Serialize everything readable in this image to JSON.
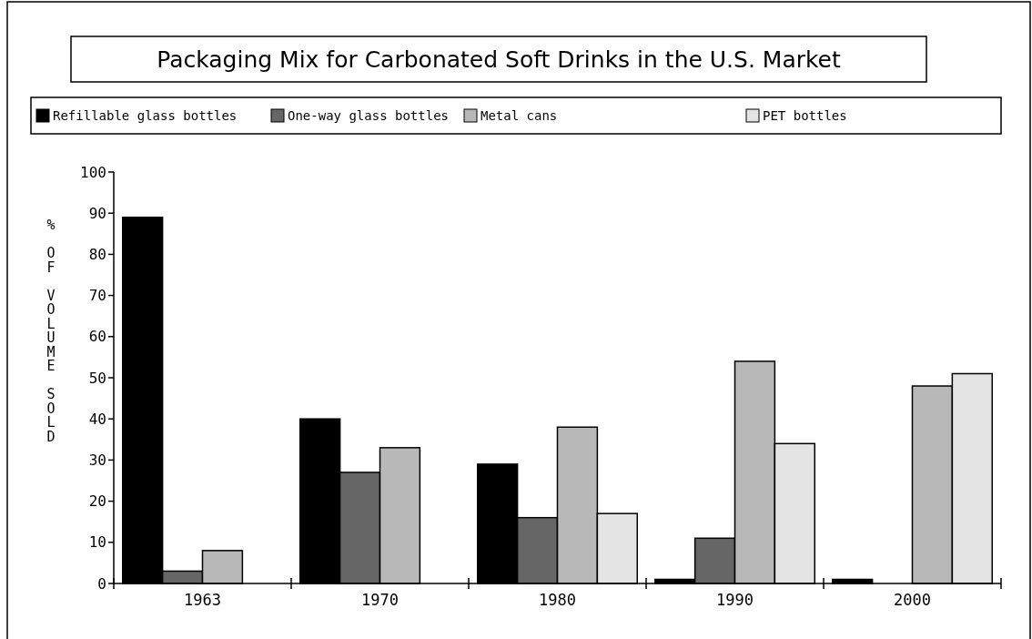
{
  "chart_data": {
    "type": "bar",
    "title": "Packaging Mix for Carbonated Soft Drinks in the U.S. Market",
    "ylabel": "% OF VOLUME SOLD",
    "categories": [
      "1963",
      "1970",
      "1980",
      "1990",
      "2000"
    ],
    "series": [
      {
        "name": "Refillable glass bottles",
        "color": "#000000",
        "values": [
          89,
          40,
          29,
          1,
          1
        ]
      },
      {
        "name": "One-way glass bottles",
        "color": "#666666",
        "values": [
          3,
          27,
          16,
          11,
          null
        ]
      },
      {
        "name": "Metal cans",
        "color": "#b8b8b8",
        "values": [
          8,
          33,
          38,
          54,
          48
        ]
      },
      {
        "name": "PET bottles",
        "color": "#e4e4e4",
        "values": [
          null,
          null,
          17,
          34,
          51
        ]
      }
    ],
    "ylim": [
      0,
      100
    ],
    "yticks": [
      0,
      10,
      20,
      30,
      40,
      50,
      60,
      70,
      80,
      90,
      100
    ],
    "grid": false,
    "legend": "top"
  }
}
